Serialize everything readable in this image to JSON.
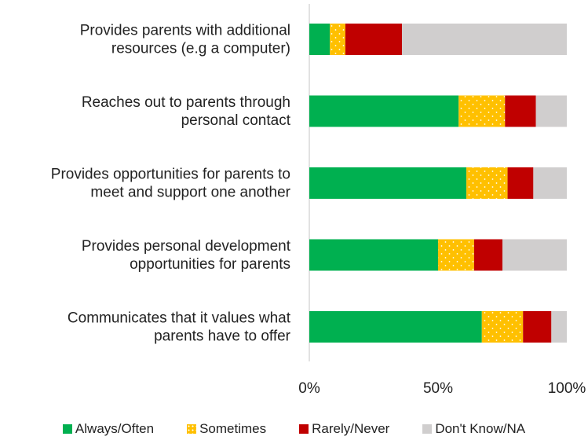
{
  "chart_data": {
    "type": "bar",
    "orientation": "horizontal",
    "stacked": true,
    "percent": true,
    "categories": [
      [
        "Provides parents with additional",
        "resources (e.g a computer)"
      ],
      [
        "Reaches out to parents through",
        "personal contact"
      ],
      [
        "Provides opportunities for parents to",
        "meet and support one another"
      ],
      [
        "Provides personal development",
        "opportunities for parents"
      ],
      [
        "Communicates that it values what",
        "parents have to offer"
      ]
    ],
    "series": [
      {
        "name": "Always/Often",
        "color": "#00b050",
        "pattern": "none",
        "values": [
          8,
          58,
          61,
          50,
          67
        ]
      },
      {
        "name": "Sometimes",
        "color": "#ffc000",
        "pattern": "dots",
        "values": [
          6,
          18,
          16,
          14,
          16
        ]
      },
      {
        "name": "Rarely/Never",
        "color": "#c00000",
        "pattern": "none",
        "values": [
          22,
          12,
          10,
          11,
          11
        ]
      },
      {
        "name": "Don't Know/NA",
        "color": "#d0cece",
        "pattern": "none",
        "values": [
          64,
          12,
          13,
          25,
          6
        ]
      }
    ],
    "xlim": [
      0,
      100
    ],
    "xticks": [
      "0%",
      "50%",
      "100%"
    ],
    "grid": false,
    "legend_position": "bottom"
  }
}
